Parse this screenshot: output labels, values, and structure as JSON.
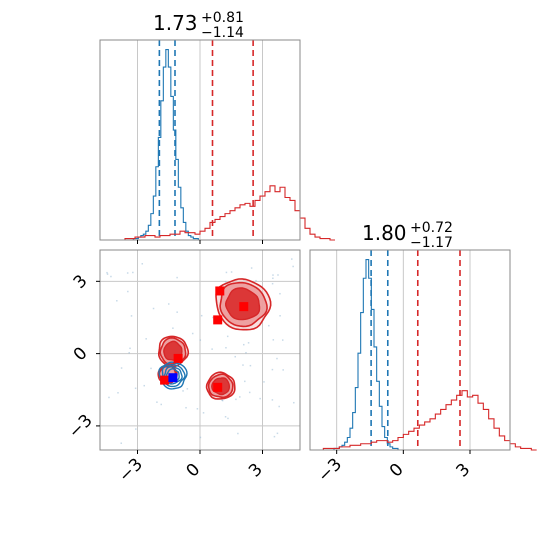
{
  "chart_data": {
    "type": "corner",
    "colors": {
      "red": "#d62728",
      "blue": "#1f77b4",
      "red_fill": "#ec9a9a",
      "red_fill_inner": "#d92b2b"
    },
    "panels": [
      {
        "id": "p1-marginal",
        "type": "histogram",
        "title_main": "1.73",
        "title_sup": "+0.81",
        "title_sub": "−1.14",
        "xlim": [
          -4.8,
          4.8
        ],
        "grid_x": [
          -3,
          0,
          3
        ],
        "show_xticklabels": false,
        "series": [
          {
            "name": "",
            "color": "#1f77b4",
            "bin_edges_start": -3.8,
            "bin_width": 0.12,
            "counts": [
              0,
              0,
              0,
              0,
              0,
              1,
              1,
              2,
              3,
              4,
              6,
              10,
              18,
              30,
              50,
              70,
              95,
              118,
              130,
              118,
              98,
              75,
              55,
              36,
              22,
              12,
              6,
              3,
              2,
              1,
              1,
              0,
              0,
              0,
              0
            ],
            "quantiles": [
              -1.95,
              -1.2
            ]
          },
          {
            "name": "",
            "color": "#d62728",
            "bin_edges_start": -3.6,
            "bin_width": 0.24,
            "counts": [
              1,
              1,
              2,
              2,
              3,
              3,
              2,
              3,
              3,
              4,
              4,
              6,
              5,
              5,
              4,
              6,
              8,
              12,
              14,
              16,
              18,
              20,
              22,
              24,
              25,
              23,
              27,
              30,
              33,
              37,
              33,
              36,
              29,
              27,
              20,
              15,
              8,
              4,
              2,
              1,
              1,
              0
            ],
            "quantiles": [
              0.6,
              2.55
            ]
          }
        ]
      },
      {
        "id": "p2-joint",
        "type": "contour2d",
        "xlim": [
          -4.8,
          4.8
        ],
        "ylim": [
          -4.0,
          4.3
        ],
        "xticks": [
          -3,
          0,
          3
        ],
        "yticks": [
          -3,
          0,
          3
        ],
        "xticklabels": [
          "−3",
          "0",
          "3"
        ],
        "yticklabels": [
          "−3",
          "0",
          "3"
        ],
        "red_clusters": [
          {
            "center": [
              2.05,
              2.05
            ],
            "rx": 2.6,
            "ry": 2.1,
            "rotation": -8
          },
          {
            "center": [
              -1.3,
              0.1
            ],
            "rx": 1.4,
            "ry": 1.25,
            "rotation": 0
          },
          {
            "center": [
              1.0,
              -1.35
            ],
            "rx": 1.35,
            "ry": 1.1,
            "rotation": 0
          },
          {
            "center": [
              -1.55,
              -0.85
            ],
            "rx": 0.9,
            "ry": 0.75,
            "rotation": 0
          }
        ],
        "blue_cluster": {
          "center": [
            -1.3,
            -0.9
          ],
          "rx": 0.65,
          "ry": 0.55,
          "rotation": 0
        },
        "red_markers": [
          [
            0.95,
            2.6
          ],
          [
            0.85,
            1.4
          ],
          [
            2.1,
            1.95
          ],
          [
            -1.05,
            -0.2
          ],
          [
            0.85,
            -1.4
          ],
          [
            -1.7,
            -1.1
          ]
        ],
        "blue_markers": [
          [
            -1.3,
            -1.0
          ]
        ]
      },
      {
        "id": "p3-marginal",
        "type": "histogram",
        "title_main": "1.80",
        "title_sup": "+0.72",
        "title_sub": "−1.17",
        "xlim": [
          -4.2,
          4.8
        ],
        "grid_x": [
          -3,
          0,
          3
        ],
        "xticks": [
          -3,
          0,
          3
        ],
        "xticklabels": [
          "−3",
          "0",
          "3"
        ],
        "series": [
          {
            "name": "",
            "color": "#1f77b4",
            "bin_edges_start": -3.6,
            "bin_width": 0.12,
            "counts": [
              0,
              0,
              0,
              0,
              1,
              1,
              2,
              3,
              5,
              8,
              14,
              24,
              40,
              62,
              88,
              110,
              122,
              110,
              90,
              66,
              44,
              28,
              15,
              8,
              4,
              2,
              1,
              1,
              0,
              0,
              0
            ],
            "quantiles": [
              -1.45,
              -0.7
            ]
          },
          {
            "name": "",
            "color": "#d62728",
            "bin_edges_start": -3.6,
            "bin_width": 0.24,
            "counts": [
              1,
              1,
              1,
              2,
              2,
              3,
              3,
              4,
              4,
              5,
              6,
              6,
              5,
              6,
              8,
              10,
              12,
              14,
              16,
              18,
              20,
              23,
              26,
              29,
              32,
              35,
              38,
              34,
              35,
              30,
              26,
              20,
              14,
              9,
              6,
              4,
              2,
              1,
              1,
              0
            ],
            "quantiles": [
              0.65,
              2.55
            ]
          }
        ]
      }
    ]
  }
}
